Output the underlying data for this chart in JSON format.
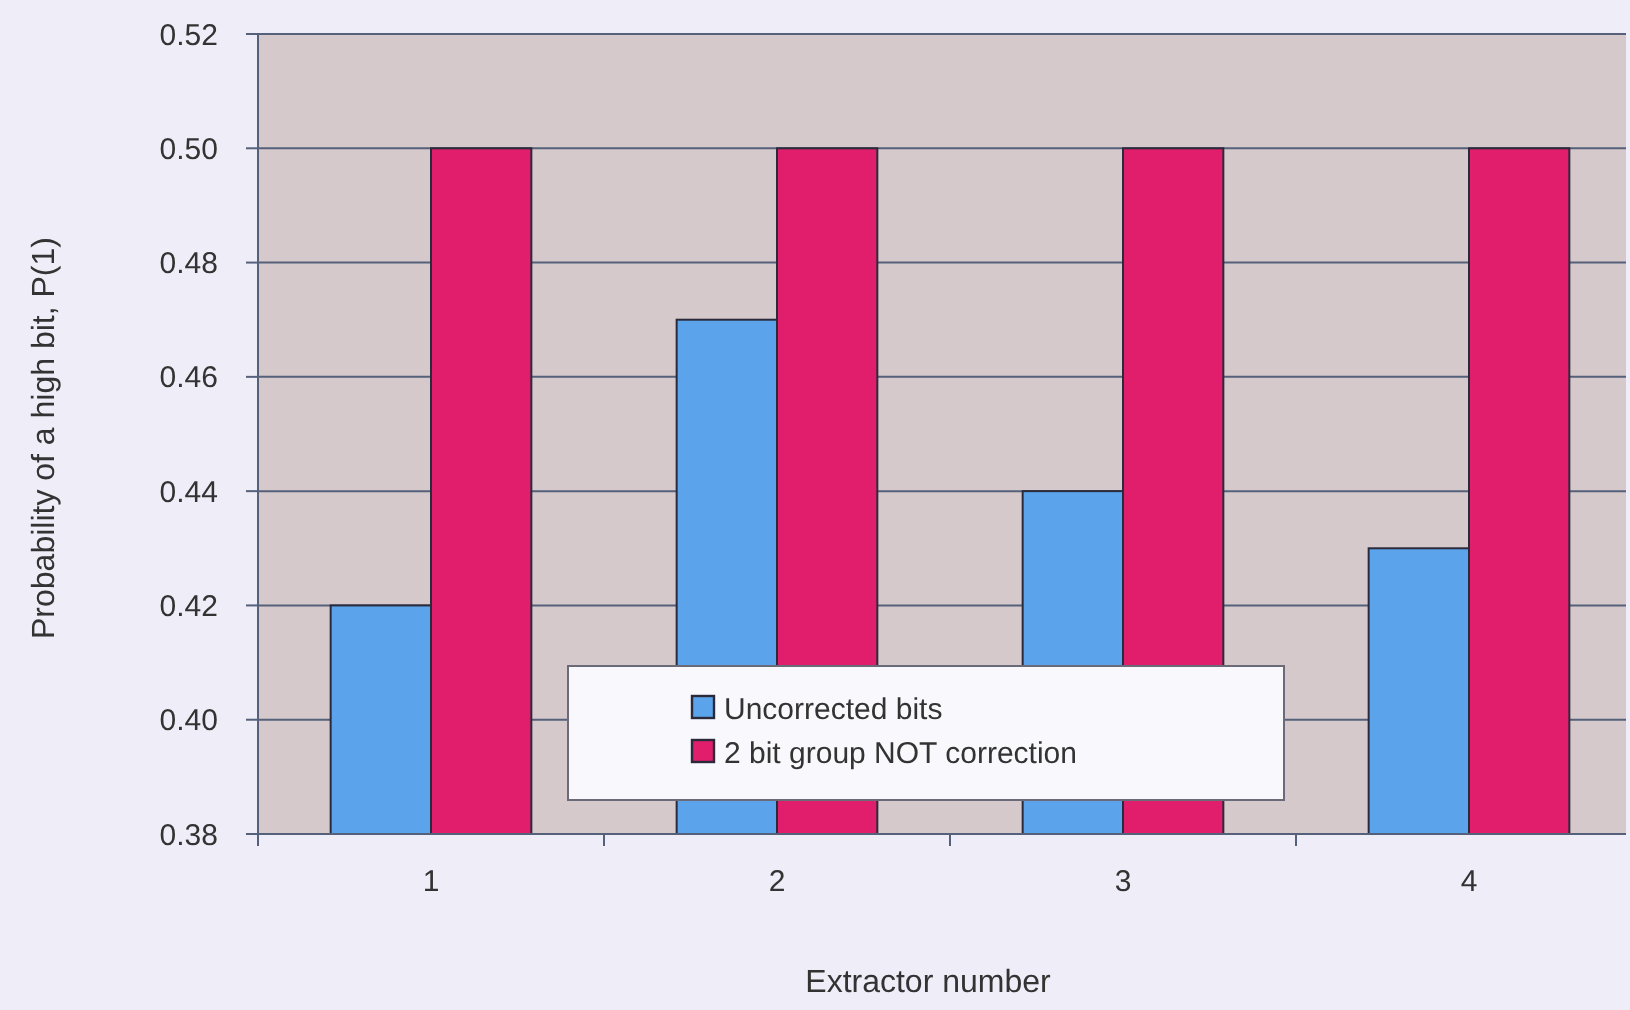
{
  "chart_data": {
    "type": "bar",
    "xlabel": "Extractor number",
    "ylabel": "Probability of a high bit, P(1)",
    "categories": [
      "1",
      "2",
      "3",
      "4"
    ],
    "series": [
      {
        "name": "Uncorrected bits",
        "color": "#5ba4ec",
        "values": [
          0.42,
          0.47,
          0.44,
          0.43
        ]
      },
      {
        "name": "2 bit group NOT correction",
        "color": "#e01e6c",
        "values": [
          0.5,
          0.5,
          0.5,
          0.5
        ]
      }
    ],
    "ylim": [
      0.38,
      0.52
    ],
    "yticks": [
      {
        "value": 0.38,
        "label": "0.38"
      },
      {
        "value": 0.4,
        "label": "0.40"
      },
      {
        "value": 0.42,
        "label": "0.42"
      },
      {
        "value": 0.44,
        "label": "0.44"
      },
      {
        "value": 0.46,
        "label": "0.46"
      },
      {
        "value": 0.48,
        "label": "0.48"
      },
      {
        "value": 0.5,
        "label": "0.50"
      },
      {
        "value": 0.52,
        "label": "0.52"
      }
    ],
    "grid": "y",
    "legend": "bottom"
  }
}
